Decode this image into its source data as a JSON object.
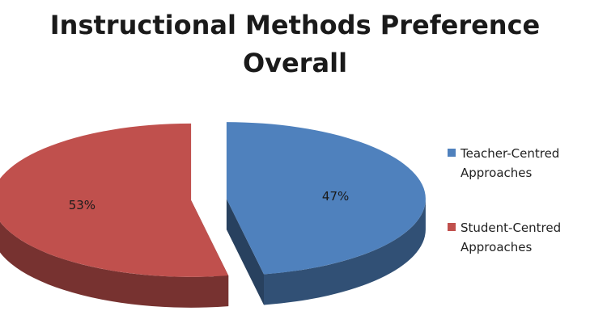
{
  "title": "Instructional Methods Preference Overall",
  "chart_data": {
    "type": "pie",
    "style": "3d-exploded",
    "title": "Instructional Methods Preference Overall",
    "series": [
      {
        "name": "Teacher-Centred Approaches",
        "value": 47,
        "label": "47%",
        "color": "#4f81bd"
      },
      {
        "name": "Student-Centred Approaches",
        "value": 53,
        "label": "53%",
        "color": "#c0504d"
      }
    ],
    "legend_position": "right"
  }
}
